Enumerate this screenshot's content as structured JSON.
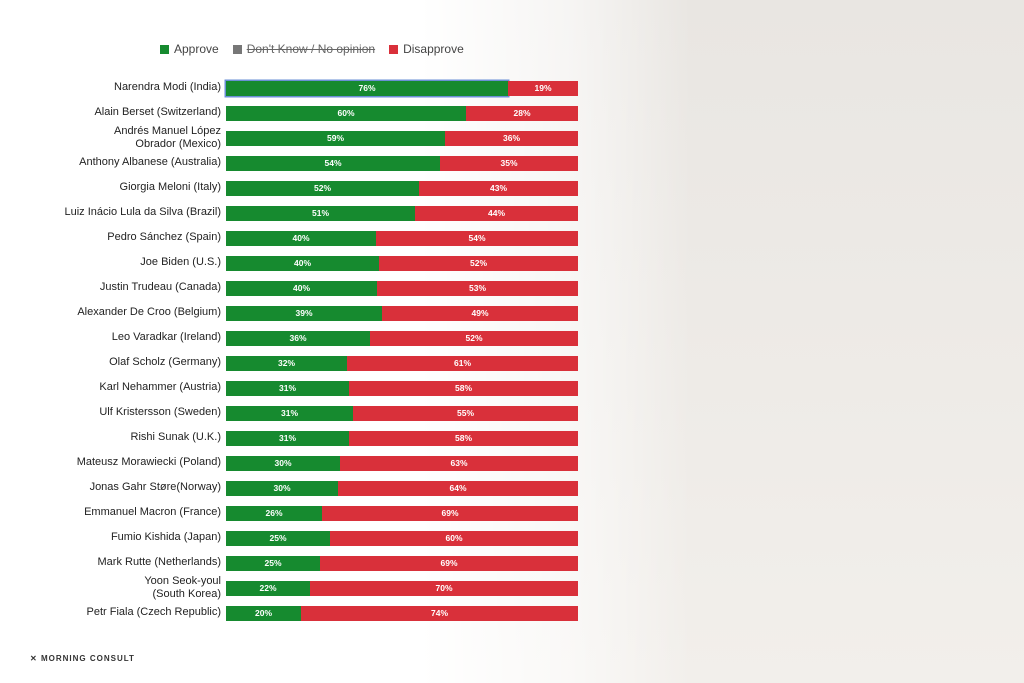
{
  "chart_data": {
    "type": "bar",
    "orientation": "horizontal-stacked",
    "legend": [
      {
        "name": "Approve",
        "color": "#168a2f"
      },
      {
        "name": "Don't Know / No opinion",
        "color": "#777777",
        "hidden": true
      },
      {
        "name": "Disapprove",
        "color": "#d9303a"
      }
    ],
    "categories": [
      "Narendra Modi (India)",
      "Alain Berset (Switzerland)",
      "Andrés Manuel López\nObrador (Mexico)",
      "Anthony Albanese (Australia)",
      "Giorgia Meloni (Italy)",
      "Luiz Inácio Lula da Silva (Brazil)",
      "Pedro Sánchez (Spain)",
      "Joe Biden (U.S.)",
      "Justin Trudeau (Canada)",
      "Alexander De Croo (Belgium)",
      "Leo Varadkar (Ireland)",
      "Olaf Scholz (Germany)",
      "Karl Nehammer (Austria)",
      "Ulf Kristersson (Sweden)",
      "Rishi Sunak (U.K.)",
      "Mateusz Morawiecki (Poland)",
      "Jonas Gahr Støre(Norway)",
      "Emmanuel Macron (France)",
      "Fumio Kishida (Japan)",
      "Mark Rutte (Netherlands)",
      "Yoon Seok-youl\n(South Korea)",
      "Petr Fiala (Czech Republic)"
    ],
    "series": [
      {
        "name": "Approve",
        "values": [
          76,
          60,
          59,
          54,
          52,
          51,
          40,
          40,
          40,
          39,
          36,
          32,
          31,
          31,
          31,
          30,
          30,
          26,
          25,
          25,
          22,
          20
        ]
      },
      {
        "name": "Disapprove",
        "values": [
          19,
          28,
          36,
          35,
          43,
          44,
          54,
          52,
          53,
          49,
          52,
          61,
          58,
          55,
          58,
          63,
          64,
          69,
          60,
          69,
          70,
          74
        ]
      }
    ],
    "value_suffix": "%",
    "highlight_index": 0
  },
  "brand": "MORNING CONSULT"
}
